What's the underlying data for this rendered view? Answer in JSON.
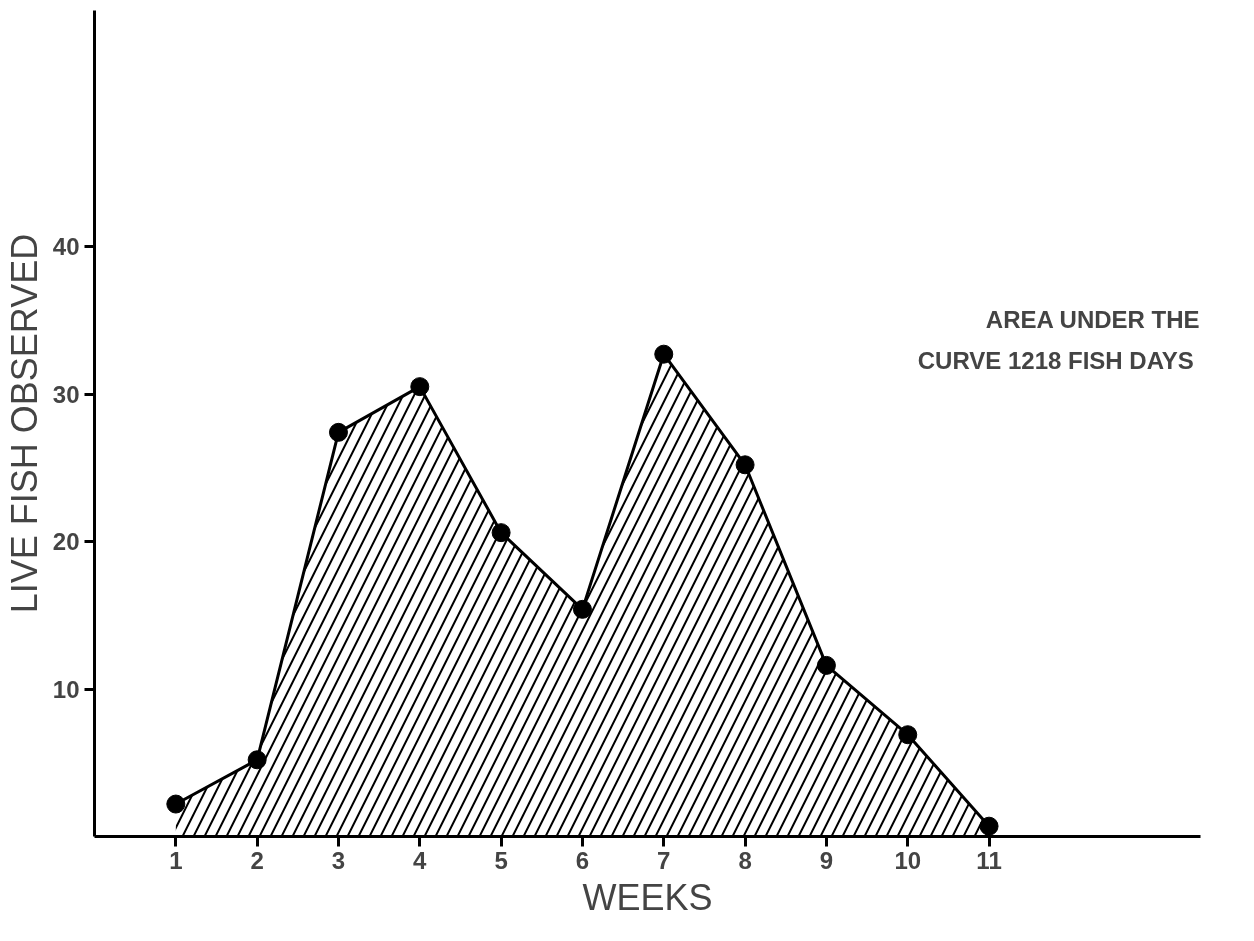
{
  "chart_data": {
    "type": "area",
    "xlabel": "WEEKS",
    "ylabel": "LIVE FISH OBSERVED",
    "x": [
      1,
      2,
      3,
      4,
      5,
      6,
      7,
      8,
      9,
      10,
      11
    ],
    "series": [
      {
        "color": "#000000",
        "values": [
          2.2,
          5.2,
          27.4,
          30.5,
          20.6,
          15.4,
          32.7,
          25.2,
          11.6,
          6.9,
          0.7
        ]
      }
    ],
    "xlim": [
      0,
      13.6
    ],
    "ylim": [
      0,
      56
    ],
    "xticks": [
      1,
      2,
      3,
      4,
      5,
      6,
      7,
      8,
      9,
      10,
      11
    ],
    "yticks": [
      10,
      20,
      30,
      40
    ],
    "marker": "circle",
    "grid": false,
    "annotations": [
      "AREA UNDER THE\nCURVE  1218 FISH DAYS"
    ]
  }
}
